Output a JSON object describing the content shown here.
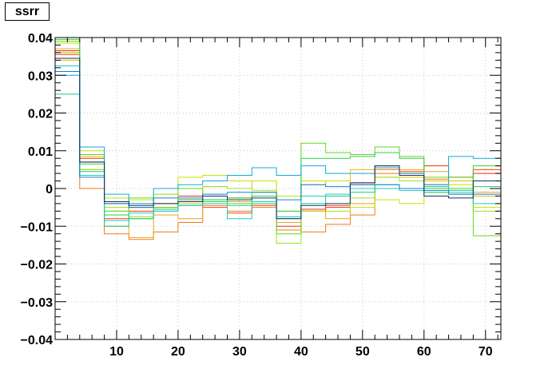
{
  "chart_data": {
    "type": "line",
    "title": "ssrr",
    "xlabel": "",
    "ylabel": "",
    "xlim": [
      0,
      72.5
    ],
    "ylim": [
      -0.04,
      0.04
    ],
    "grid": true,
    "x_ticks": [
      10,
      20,
      30,
      40,
      50,
      60,
      70
    ],
    "y_ticks": [
      -0.04,
      -0.03,
      -0.02,
      -0.01,
      0,
      0.01,
      0.02,
      0.03,
      0.04
    ],
    "x_tick_labels": [
      "10",
      "20",
      "30",
      "40",
      "50",
      "60",
      "70"
    ],
    "y_tick_labels": [
      "−0.04",
      "−0.03",
      "−0.02",
      "−0.01",
      "0",
      "0.01",
      "0.02",
      "0.03",
      "0.04"
    ],
    "bin_edges": [
      0,
      4,
      8,
      12,
      16,
      20,
      24,
      28,
      32,
      36,
      40,
      44,
      48,
      52,
      56,
      60,
      64,
      68,
      72.5
    ],
    "series": [
      {
        "color": "#e8300e",
        "values": [
          0.0365,
          0.008,
          -0.004,
          -0.005,
          -0.004,
          -0.002,
          -0.002,
          -0.0025,
          -0.002,
          -0.01,
          -0.0055,
          -0.005,
          0.0015,
          0.005,
          0.0045,
          0.006,
          0.003,
          0.004
        ]
      },
      {
        "color": "#ff3b00",
        "values": [
          0.0355,
          0.007,
          -0.008,
          -0.006,
          -0.005,
          -0.003,
          -0.005,
          -0.0065,
          -0.0045,
          -0.011,
          -0.006,
          -0.0045,
          0.001,
          0.006,
          0.004,
          0.001,
          0.0,
          0.005
        ]
      },
      {
        "color": "#f07a10",
        "values": [
          0.036,
          0.0,
          -0.012,
          -0.0135,
          -0.0115,
          -0.009,
          -0.0045,
          -0.006,
          -0.005,
          -0.011,
          -0.0115,
          -0.0095,
          -0.007,
          0.004,
          0.0045,
          0.0025,
          0.003,
          -0.002
        ]
      },
      {
        "color": "#f0a020",
        "values": [
          0.037,
          0.005,
          -0.01,
          -0.013,
          -0.007,
          -0.008,
          -0.003,
          -0.0035,
          -0.0035,
          -0.009,
          -0.006,
          -0.008,
          -0.004,
          0.005,
          0.005,
          0.0045,
          0.0,
          -0.001
        ]
      },
      {
        "color": "#e0c000",
        "values": [
          0.034,
          0.0085,
          -0.006,
          -0.004,
          -0.004,
          -0.004,
          0.0005,
          0.0,
          0.002,
          -0.006,
          0.001,
          0.002,
          0.005,
          0.003,
          0.003,
          0.002,
          0.002,
          -0.002
        ]
      },
      {
        "color": "#c8e000",
        "values": [
          0.0385,
          0.01,
          -0.0025,
          -0.003,
          -0.0015,
          0.003,
          0.0035,
          0.002,
          0.002,
          -0.002,
          0.002,
          0.002,
          -0.005,
          -0.003,
          -0.004,
          0.0005,
          0.001,
          -0.005
        ]
      },
      {
        "color": "#a0e020",
        "values": [
          0.036,
          0.005,
          -0.005,
          -0.0075,
          -0.0015,
          0.0,
          0.0005,
          0.0,
          -0.0005,
          -0.0145,
          -0.006,
          -0.006,
          -0.0025,
          0.003,
          0.002,
          -0.001,
          -0.0015,
          -0.006
        ]
      },
      {
        "color": "#60d820",
        "values": [
          0.039,
          0.009,
          -0.006,
          -0.0025,
          -0.005,
          0.0,
          -0.002,
          -0.004,
          -0.001,
          -0.012,
          0.012,
          0.0095,
          0.009,
          0.011,
          0.0085,
          0.003,
          0.003,
          -0.0125
        ]
      },
      {
        "color": "#30d040",
        "values": [
          0.0395,
          0.0065,
          -0.007,
          -0.008,
          -0.006,
          -0.003,
          -0.0035,
          -0.0025,
          -0.002,
          -0.006,
          0.008,
          0.008,
          0.0085,
          0.0095,
          0.008,
          0.0,
          0.0,
          0.006
        ]
      },
      {
        "color": "#20c880",
        "values": [
          0.025,
          0.0045,
          -0.01,
          -0.008,
          -0.0055,
          -0.0045,
          -0.003,
          -0.0045,
          -0.004,
          -0.008,
          -0.004,
          -0.002,
          -0.001,
          0.001,
          0.0,
          -0.001,
          -0.0005,
          0.0005
        ]
      },
      {
        "color": "#20c8c0",
        "values": [
          0.0325,
          0.0035,
          -0.0085,
          -0.0065,
          -0.006,
          -0.0045,
          -0.004,
          -0.008,
          -0.0035,
          -0.0075,
          -0.002,
          -0.0015,
          0.0,
          0.0,
          -0.0005,
          0.0005,
          -0.001,
          -0.004
        ]
      },
      {
        "color": "#10a8e0",
        "values": [
          0.03,
          0.011,
          -0.0015,
          -0.004,
          0.0,
          0.001,
          0.002,
          0.0035,
          0.0055,
          0.0035,
          0.006,
          0.004,
          0.004,
          0.0055,
          0.004,
          0.001,
          0.0085,
          0.008
        ]
      },
      {
        "color": "#1080d0",
        "values": [
          0.031,
          0.003,
          -0.004,
          -0.005,
          -0.0025,
          -0.0025,
          -0.0015,
          -0.001,
          -0.001,
          -0.003,
          0.001,
          0.0005,
          0.001,
          0.001,
          0.0,
          -0.0005,
          -0.0015,
          -0.0015
        ]
      },
      {
        "color": "#103070",
        "values": [
          0.0345,
          0.007,
          -0.0035,
          -0.0045,
          -0.004,
          -0.0035,
          -0.002,
          -0.003,
          -0.0025,
          -0.008,
          -0.0045,
          -0.004,
          0.0015,
          0.006,
          0.0035,
          -0.002,
          -0.0025,
          0.002
        ]
      }
    ]
  }
}
